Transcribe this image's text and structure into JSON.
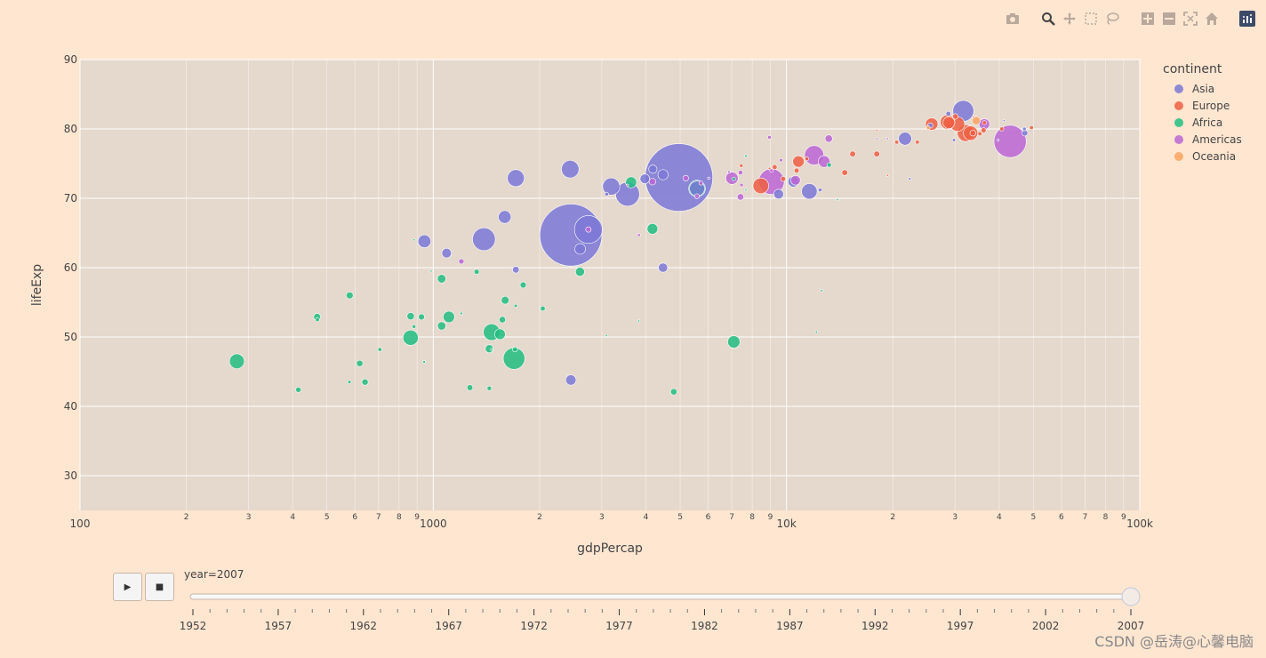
{
  "modebar": {
    "buttons": [
      "camera-icon",
      "zoom-icon",
      "pan-icon",
      "box-select-icon",
      "lasso-icon",
      "zoom-in-icon",
      "zoom-out-icon",
      "autoscale-icon",
      "home-icon",
      "plotly-logo-icon"
    ]
  },
  "slider": {
    "label": "year=2007",
    "years": [
      "1952",
      "1957",
      "1962",
      "1967",
      "1972",
      "1977",
      "1982",
      "1987",
      "1992",
      "1997",
      "2002",
      "2007"
    ],
    "current": "2007",
    "play_symbol": "▶",
    "stop_symbol": "■"
  },
  "watermark": "CSDN @岳涛@心馨电脑",
  "colors": {
    "Asia": "#7b78d6",
    "Europe": "#ef5f43",
    "Africa": "#22bd80",
    "Americas": "#bb66d3",
    "Oceania": "#fba35f",
    "plot_bg": "#e5d8cc",
    "page_bg": "#ffe6d1"
  },
  "chart_data": {
    "type": "scatter",
    "title": "",
    "xlabel": "gdpPercap",
    "ylabel": "lifeExp",
    "x_scale": "log",
    "xlim": [
      100,
      100000
    ],
    "ylim": [
      25,
      90
    ],
    "x_tick_major": [
      {
        "v": 100,
        "t": "100"
      },
      {
        "v": 1000,
        "t": "1000"
      },
      {
        "v": 10000,
        "t": "10k"
      },
      {
        "v": 100000,
        "t": "100k"
      }
    ],
    "x_tick_minor": [
      {
        "v": 200,
        "t": "2"
      },
      {
        "v": 300,
        "t": "3"
      },
      {
        "v": 400,
        "t": "4"
      },
      {
        "v": 500,
        "t": "5"
      },
      {
        "v": 600,
        "t": "6"
      },
      {
        "v": 700,
        "t": "7"
      },
      {
        "v": 800,
        "t": "8"
      },
      {
        "v": 900,
        "t": "9"
      },
      {
        "v": 2000,
        "t": "2"
      },
      {
        "v": 3000,
        "t": "3"
      },
      {
        "v": 4000,
        "t": "4"
      },
      {
        "v": 5000,
        "t": "5"
      },
      {
        "v": 6000,
        "t": "6"
      },
      {
        "v": 7000,
        "t": "7"
      },
      {
        "v": 8000,
        "t": "8"
      },
      {
        "v": 9000,
        "t": "9"
      },
      {
        "v": 20000,
        "t": "2"
      },
      {
        "v": 30000,
        "t": "3"
      },
      {
        "v": 40000,
        "t": "4"
      },
      {
        "v": 50000,
        "t": "5"
      },
      {
        "v": 60000,
        "t": "6"
      },
      {
        "v": 70000,
        "t": "7"
      },
      {
        "v": 80000,
        "t": "8"
      },
      {
        "v": 90000,
        "t": "9"
      }
    ],
    "y_ticks": [
      30,
      40,
      50,
      60,
      70,
      80,
      90
    ],
    "legend_title": "continent",
    "legend": [
      "Asia",
      "Europe",
      "Africa",
      "Americas",
      "Oceania"
    ],
    "size_field": "pop",
    "series": [
      {
        "name": "Asia",
        "points": [
          [
            4959,
            73.0,
            1318
          ],
          [
            2452,
            64.7,
            1110
          ],
          [
            2749,
            65.5,
            224
          ],
          [
            3548,
            70.6,
            165
          ],
          [
            1391,
            64.1,
            150
          ],
          [
            3190,
            71.7,
            85
          ],
          [
            1713,
            72.9,
            83
          ],
          [
            31656,
            82.6,
            127
          ],
          [
            2442,
            74.2,
            89
          ],
          [
            11606,
            71.0,
            70
          ],
          [
            5581,
            71.4,
            65
          ],
          [
            47307,
            79.4,
            10
          ],
          [
            9500,
            70.6,
            28
          ],
          [
            21655,
            78.6,
            49
          ],
          [
            1091,
            62.1,
            27
          ],
          [
            944,
            63.8,
            48
          ],
          [
            1593,
            67.3,
            47
          ],
          [
            2605,
            62.7,
            33
          ],
          [
            4471,
            60.0,
            25
          ],
          [
            4185,
            74.2,
            20
          ],
          [
            10461,
            72.4,
            34
          ],
          [
            25523,
            80.5,
            8
          ],
          [
            3970,
            72.8,
            27
          ],
          [
            1713,
            59.7,
            13
          ],
          [
            28718,
            82.2,
            7
          ],
          [
            47143,
            80.0,
            4
          ],
          [
            39725,
            78.4,
            0.7
          ],
          [
            29796,
            78.4,
            3
          ],
          [
            3096,
            70.6,
            4
          ],
          [
            22316,
            72.8,
            2
          ],
          [
            41282,
            81.2,
            1
          ],
          [
            12451,
            71.2,
            4
          ],
          [
            2452,
            43.8,
            31
          ],
          [
            4471,
            73.4,
            30
          ]
        ]
      },
      {
        "name": "Europe",
        "points": [
          [
            32170,
            79.4,
            82
          ],
          [
            30470,
            80.7,
            61
          ],
          [
            28570,
            81.0,
            60
          ],
          [
            33203,
            79.4,
            60
          ],
          [
            28821,
            80.9,
            40
          ],
          [
            8458,
            71.8,
            71
          ],
          [
            36126,
            79.8,
            8
          ],
          [
            33692,
            79.4,
            10
          ],
          [
            10808,
            75.3,
            38
          ],
          [
            30054,
            81.8,
            9
          ],
          [
            35278,
            79.3,
            5
          ],
          [
            40676,
            80.0,
            5
          ],
          [
            49357,
            80.2,
            4.6
          ],
          [
            36319,
            80.9,
            4.6
          ],
          [
            20510,
            78.1,
            4.6
          ],
          [
            18009,
            76.4,
            10
          ],
          [
            25768,
            80.7,
            45
          ],
          [
            33860,
            81.7,
            0.3
          ],
          [
            14619,
            73.7,
            10
          ],
          [
            7446,
            74.7,
            3.6
          ],
          [
            9254,
            74.5,
            7.3
          ],
          [
            9786,
            72.8,
            7.3
          ],
          [
            11415,
            75.7,
            4.5
          ],
          [
            10681,
            74.0,
            7.3
          ],
          [
            23463,
            78.1,
            4.5
          ],
          [
            19329,
            73.3,
            1.3
          ],
          [
            15390,
            76.4,
            10
          ],
          [
            8954,
            74.3,
            2
          ],
          [
            18009,
            79.8,
            1
          ]
        ]
      },
      {
        "name": "Africa",
        "points": [
          [
            1693,
            46.9,
            135
          ],
          [
            278,
            46.5,
            64
          ],
          [
            2602,
            59.4,
            24
          ],
          [
            1463,
            50.7,
            80
          ],
          [
            863,
            49.9,
            68
          ],
          [
            7092,
            49.3,
            44
          ],
          [
            1107,
            52.9,
            38
          ],
          [
            1545,
            50.4,
            33
          ],
          [
            5581,
            71.4,
            80
          ],
          [
            4173,
            65.6,
            33
          ],
          [
            3632,
            72.3,
            35
          ],
          [
            7670,
            71.2,
            0.5
          ],
          [
            641,
            43.5,
            12
          ],
          [
            1056,
            58.4,
            21
          ],
          [
            1441,
            48.3,
            19
          ],
          [
            863,
            53.0,
            16
          ],
          [
            2042,
            54.1,
            7
          ],
          [
            1598,
            55.3,
            18
          ],
          [
            926,
            52.9,
            11
          ],
          [
            580,
            56.0,
            14
          ],
          [
            1270,
            42.7,
            10
          ],
          [
            579,
            43.5,
            3
          ],
          [
            470,
            52.5,
            4.5
          ],
          [
            12570,
            56.7,
            1.5
          ],
          [
            13206,
            74.8,
            6
          ],
          [
            1712,
            54.5,
            3
          ],
          [
            1704,
            48.2,
            7
          ],
          [
            7093,
            72.8,
            3.4
          ],
          [
            13934,
            69.8,
            1.2
          ],
          [
            4797,
            42.1,
            12
          ],
          [
            415,
            42.4,
            8.5
          ],
          [
            1327,
            59.4,
            8
          ],
          [
            1056,
            51.6,
            20
          ],
          [
            883,
            64.0,
            0.8
          ],
          [
            469,
            52.9,
            14
          ],
          [
            619,
            46.2,
            12
          ],
          [
            706,
            48.2,
            4.5
          ],
          [
            1797,
            57.5,
            11
          ],
          [
            1201,
            53.4,
            2
          ],
          [
            1463,
            48.2,
            1.1
          ],
          [
            3820,
            52.3,
            1.1
          ],
          [
            12154,
            50.7,
            1.6
          ],
          [
            3095,
            50.2,
            0.6
          ],
          [
            7670,
            76.1,
            2
          ],
          [
            986,
            59.5,
            0.2
          ],
          [
            882,
            51.5,
            4
          ],
          [
            1441,
            42.6,
            6
          ],
          [
            942,
            46.4,
            2.1
          ],
          [
            1569,
            52.5,
            12
          ]
        ]
      },
      {
        "name": "Americas",
        "points": [
          [
            42952,
            78.2,
            301
          ],
          [
            9066,
            72.4,
            190
          ],
          [
            11977,
            76.2,
            108
          ],
          [
            12779,
            75.3,
            40
          ],
          [
            7007,
            72.9,
            44
          ],
          [
            36319,
            80.7,
            33
          ],
          [
            13172,
            78.6,
            16
          ],
          [
            7408,
            73.7,
            6.4
          ],
          [
            5728,
            72.2,
            5
          ],
          [
            3822,
            64.7,
            2.4
          ],
          [
            6873,
            73.8,
            2
          ],
          [
            9645,
            75.5,
            3.2
          ],
          [
            8948,
            78.8,
            4
          ],
          [
            9065,
            74.0,
            3.6
          ],
          [
            5186,
            72.9,
            9.3
          ],
          [
            7409,
            70.2,
            13
          ],
          [
            5581,
            70.3,
            6.9
          ],
          [
            2749,
            65.5,
            8.5
          ],
          [
            4172,
            72.4,
            13
          ],
          [
            1201,
            60.9,
            8.5
          ],
          [
            6025,
            72.9,
            1.5
          ],
          [
            3548,
            71.9,
            0.6
          ],
          [
            7458,
            71.9,
            3.4
          ],
          [
            10611,
            72.6,
            27
          ],
          [
            18009,
            78.6,
            1.1
          ],
          [
            19329,
            78.6,
            1.1
          ]
        ]
      },
      {
        "name": "Oceania",
        "points": [
          [
            34435,
            81.2,
            20
          ],
          [
            25185,
            80.2,
            4.1
          ]
        ]
      }
    ]
  }
}
